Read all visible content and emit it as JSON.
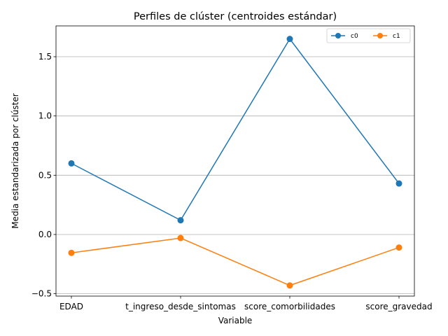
{
  "chart_data": {
    "type": "line",
    "title": "Perfiles de clúster (centroides estándar)",
    "xlabel": "Variable",
    "ylabel": "Media estandarizada por clúster",
    "categories": [
      "EDAD",
      "t_ingreso_desde_sintomas",
      "score_comorbilidades",
      "score_gravedad"
    ],
    "ylim": [
      -0.52,
      1.76
    ],
    "yticks": [
      -0.5,
      0.0,
      0.5,
      1.0,
      1.5
    ],
    "ytick_labels": [
      "−0.5",
      "0.0",
      "0.5",
      "1.0",
      "1.5"
    ],
    "grid": "horizontal",
    "legend_position": "top-right",
    "series": [
      {
        "name": "c0",
        "color": "#1f77b4",
        "values": [
          0.6,
          0.12,
          1.65,
          0.43
        ]
      },
      {
        "name": "c1",
        "color": "#ff7f0e",
        "values": [
          -0.155,
          -0.03,
          -0.43,
          -0.11
        ]
      }
    ]
  }
}
